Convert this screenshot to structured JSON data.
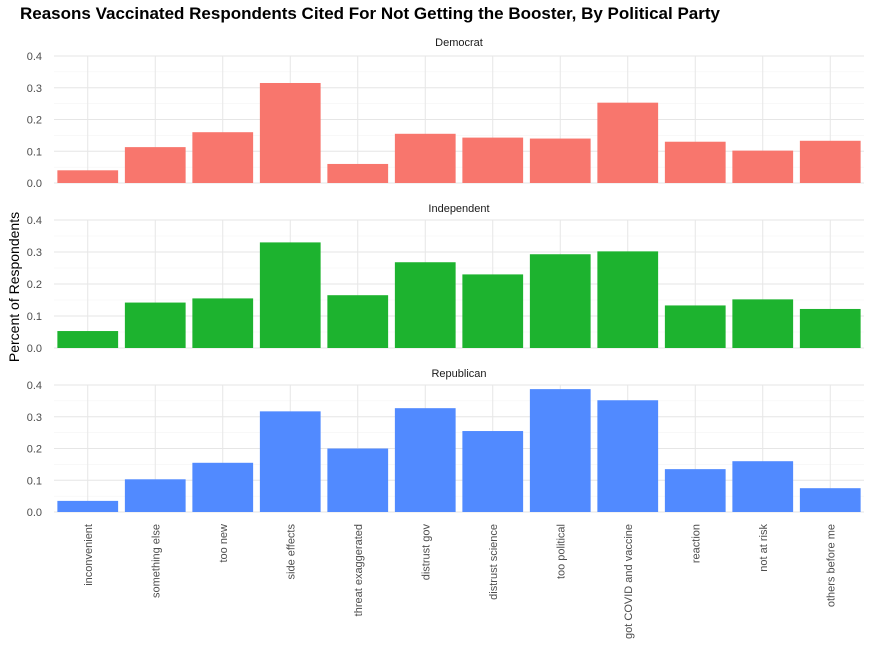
{
  "chart_data": {
    "type": "bar",
    "title": "Reasons Vaccinated Respondents Cited For Not Getting the Booster, By Political Party",
    "xlabel": "",
    "ylabel": "Percent of Respondents",
    "ylim": [
      0,
      0.4
    ],
    "yticks": [
      "0.0",
      "0.1",
      "0.2",
      "0.3",
      "0.4"
    ],
    "grid": true,
    "categories": [
      "inconvenient",
      "something else",
      "too new",
      "side effects",
      "threat exaggerated",
      "distrust gov",
      "distrust science",
      "too political",
      "got COVID and vaccine",
      "reaction",
      "not at risk",
      "others before me"
    ],
    "series": [
      {
        "name": "Democrat",
        "color": "#F8766D",
        "values": [
          0.04,
          0.113,
          0.16,
          0.315,
          0.06,
          0.155,
          0.143,
          0.14,
          0.253,
          0.13,
          0.102,
          0.133
        ]
      },
      {
        "name": "Independent",
        "color": "#1DB32F",
        "values": [
          0.053,
          0.142,
          0.155,
          0.33,
          0.165,
          0.268,
          0.23,
          0.293,
          0.302,
          0.133,
          0.152,
          0.122
        ]
      },
      {
        "name": "Republican",
        "color": "#518AFF",
        "values": [
          0.035,
          0.103,
          0.155,
          0.317,
          0.2,
          0.327,
          0.255,
          0.387,
          0.352,
          0.135,
          0.16,
          0.075
        ]
      }
    ]
  }
}
